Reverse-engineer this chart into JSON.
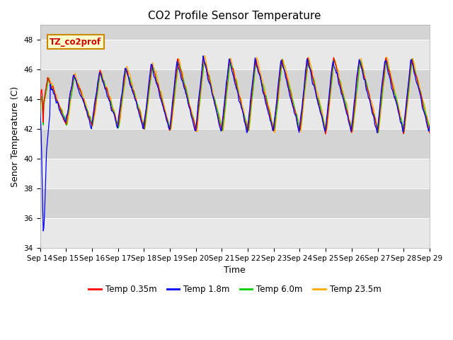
{
  "title": "CO2 Profile Sensor Temperature",
  "xlabel": "Time",
  "ylabel": "Senor Temperature (C)",
  "ylim": [
    34,
    49
  ],
  "annotation_text": "TZ_co2prof",
  "annotation_bg": "#ffffcc",
  "annotation_border": "#cc8800",
  "legend_labels": [
    "Temp 0.35m",
    "Temp 1.8m",
    "Temp 6.0m",
    "Temp 23.5m"
  ],
  "legend_colors": [
    "#ff0000",
    "#0000ff",
    "#00cc00",
    "#ffaa00"
  ],
  "x_tick_labels": [
    "Sep 14",
    "Sep 15",
    "Sep 16",
    "Sep 17",
    "Sep 18",
    "Sep 19",
    "Sep 20",
    "Sep 21",
    "Sep 22",
    "Sep 23",
    "Sep 24",
    "Sep 25",
    "Sep 26",
    "Sep 27",
    "Sep 28",
    "Sep 29"
  ],
  "band_colors": [
    "#e8e8e8",
    "#d8d8d8"
  ],
  "title_fontsize": 11,
  "axis_label_fontsize": 9,
  "tick_fontsize": 7.5
}
